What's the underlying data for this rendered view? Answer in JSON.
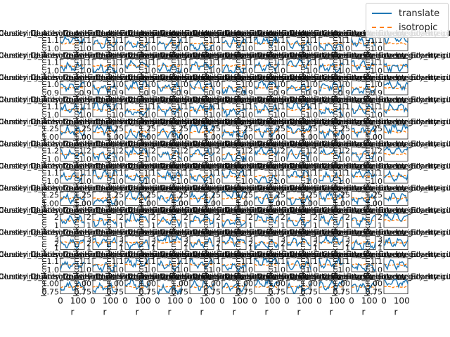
{
  "chart_data": {
    "type": "line",
    "layout": {
      "rows": 12,
      "cols": 11
    },
    "xlabel": "r",
    "ylabel": "kmm",
    "x_tick_labels": [
      "0",
      "100"
    ],
    "xlim": [
      0,
      160
    ],
    "panel_title_text": "Density_Clustering_Anisotropy_Eccentricity_Irregularity",
    "series": [
      {
        "name": "translate",
        "color": "#1f77b4",
        "style": "solid"
      },
      {
        "name": "isotropic",
        "color": "#ff7f0e",
        "style": "dashed"
      }
    ],
    "rows": [
      {
        "yticks": [
          "1.1",
          "1.0"
        ],
        "ylim": [
          0.95,
          1.15
        ]
      },
      {
        "yticks": [
          "1.1",
          "1.0"
        ],
        "ylim": [
          0.95,
          1.15
        ]
      },
      {
        "yticks": [
          "1.0",
          "0.9"
        ],
        "ylim": [
          0.85,
          1.1
        ]
      },
      {
        "yticks": [
          "1.1",
          "1.0"
        ],
        "ylim": [
          0.95,
          1.15
        ]
      },
      {
        "yticks": [
          "1.25",
          "1.00"
        ],
        "ylim": [
          0.9,
          1.35
        ]
      },
      {
        "yticks": [
          "1.2",
          "1.0"
        ],
        "ylim": [
          0.9,
          1.3
        ]
      },
      {
        "yticks": [
          "1.1",
          "1.0"
        ],
        "ylim": [
          0.95,
          1.15
        ]
      },
      {
        "yticks": [
          "1.25",
          "1.00"
        ],
        "ylim": [
          0.9,
          1.35
        ]
      },
      {
        "yticks": [
          "2",
          "1"
        ],
        "ylim": [
          0.5,
          2.5
        ]
      },
      {
        "yticks": [
          "3",
          "2",
          "1"
        ],
        "ylim": [
          0.5,
          3.5
        ]
      },
      {
        "yticks": [
          "1.1",
          "1.0"
        ],
        "ylim": [
          0.95,
          1.15
        ]
      },
      {
        "yticks": [
          "1.00",
          "0.75"
        ],
        "ylim": [
          0.7,
          1.15
        ]
      }
    ],
    "panel_values": [
      [
        1.1,
        1.05,
        1.02,
        1.04,
        1.0,
        1.06,
        1.08,
        1.03,
        1.01,
        1.07,
        1.12
      ],
      [
        1.03,
        1.0,
        1.06,
        1.02,
        1.05,
        0.99,
        1.04,
        1.08,
        1.02,
        1.05,
        1.03
      ],
      [
        1.0,
        0.96,
        1.02,
        0.98,
        1.01,
        0.95,
        1.03,
        0.97,
        1.0,
        0.94,
        1.02
      ],
      [
        1.06,
        1.09,
        1.01,
        1.04,
        1.07,
        1.02,
        1.05,
        1.1,
        1.03,
        1.06,
        1.08
      ],
      [
        1.15,
        1.2,
        1.05,
        1.1,
        1.25,
        1.08,
        1.12,
        1.18,
        1.06,
        1.14,
        1.22
      ],
      [
        1.1,
        1.05,
        1.15,
        1.08,
        1.12,
        1.04,
        1.18,
        1.09,
        1.13,
        1.06,
        1.2
      ],
      [
        1.04,
        1.07,
        1.02,
        1.05,
        1.03,
        1.08,
        1.01,
        1.06,
        1.04,
        1.09,
        1.05
      ],
      [
        1.12,
        1.05,
        1.2,
        1.08,
        1.15,
        1.25,
        1.1,
        1.06,
        1.18,
        1.09,
        1.14
      ],
      [
        1.5,
        1.3,
        1.8,
        1.4,
        1.6,
        1.2,
        1.7,
        1.35,
        1.55,
        1.45,
        1.9
      ],
      [
        1.8,
        2.2,
        1.5,
        2.6,
        1.9,
        2.3,
        1.7,
        2.1,
        2.4,
        1.6,
        2.0
      ],
      [
        1.05,
        1.02,
        1.08,
        1.03,
        1.06,
        1.01,
        1.09,
        1.04,
        1.07,
        1.02,
        1.05
      ],
      [
        0.95,
        0.9,
        1.0,
        0.85,
        0.97,
        0.92,
        1.02,
        0.88,
        0.96,
        0.93,
        1.05
      ]
    ]
  }
}
